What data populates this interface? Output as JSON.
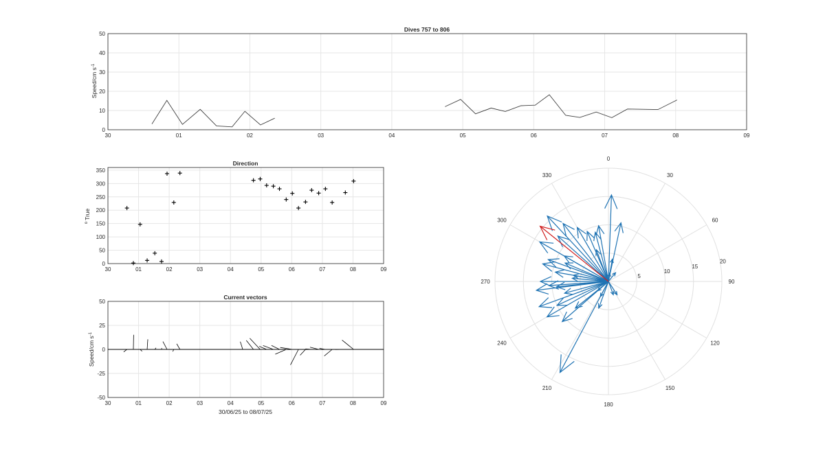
{
  "x_tick_labels": [
    "30",
    "01",
    "02",
    "03",
    "04",
    "05",
    "06",
    "07",
    "08",
    "09"
  ],
  "chart_data": [
    {
      "type": "line",
      "title": "Dives 757 to 806",
      "ylabel": "Speed/cm s",
      "ylabel_sup": "-1",
      "ylim": [
        0,
        50
      ],
      "yticks": [
        0,
        10,
        20,
        30,
        40,
        50
      ],
      "xlim": [
        0,
        9
      ],
      "color": "#404040",
      "segments": [
        [
          [
            0.62,
            3
          ],
          [
            0.83,
            15.3
          ],
          [
            1.05,
            2.8
          ],
          [
            1.3,
            10.6
          ],
          [
            1.53,
            2
          ],
          [
            1.75,
            1.5
          ],
          [
            1.93,
            9.6
          ],
          [
            2.15,
            2.5
          ],
          [
            2.35,
            6
          ]
        ],
        [
          [
            4.75,
            12
          ],
          [
            4.97,
            15.8
          ],
          [
            5.18,
            8.3
          ],
          [
            5.4,
            11.3
          ],
          [
            5.6,
            9.5
          ],
          [
            5.82,
            12.5
          ],
          [
            6.02,
            12.8
          ],
          [
            6.22,
            18.2
          ],
          [
            6.45,
            7.5
          ],
          [
            6.65,
            6.4
          ],
          [
            6.88,
            9.2
          ],
          [
            7.1,
            6.3
          ],
          [
            7.32,
            10.8
          ],
          [
            7.75,
            10.5
          ],
          [
            8.02,
            15.5
          ]
        ]
      ]
    },
    {
      "type": "scatter",
      "title": "Direction",
      "ylabel": "True",
      "ylabel_prefix": "o",
      "ylim": [
        0,
        360
      ],
      "yticks": [
        0,
        50,
        100,
        150,
        200,
        250,
        300,
        350
      ],
      "xlim": [
        0,
        9
      ],
      "marker": "+",
      "points": [
        [
          0.62,
          208
        ],
        [
          0.83,
          2
        ],
        [
          1.05,
          147
        ],
        [
          1.28,
          12
        ],
        [
          1.53,
          39
        ],
        [
          1.75,
          8
        ],
        [
          1.93,
          337
        ],
        [
          2.15,
          229
        ],
        [
          2.35,
          339
        ],
        [
          4.75,
          312
        ],
        [
          4.97,
          317
        ],
        [
          5.18,
          293
        ],
        [
          5.4,
          290
        ],
        [
          5.6,
          280
        ],
        [
          5.82,
          240
        ],
        [
          6.02,
          263
        ],
        [
          6.22,
          208
        ],
        [
          6.45,
          231
        ],
        [
          6.65,
          275
        ],
        [
          6.88,
          264
        ],
        [
          7.1,
          280
        ],
        [
          7.32,
          229
        ],
        [
          7.75,
          266
        ],
        [
          8.02,
          309
        ]
      ]
    },
    {
      "type": "line",
      "title": "Current vectors",
      "subtype": "stick",
      "ylabel": "Speed/cm s",
      "ylabel_sup": "-1",
      "xlabel": "30/06/25 to 08/07/25",
      "ylim": [
        -50,
        50
      ],
      "yticks": [
        -50,
        -25,
        0,
        25,
        50
      ],
      "xlim": [
        0,
        9
      ],
      "color": "#000000",
      "sticks": [
        [
          0.62,
          -3.4,
          -2.6
        ],
        [
          0.83,
          0.3,
          15.2
        ],
        [
          1.05,
          2.1,
          -1.9
        ],
        [
          1.28,
          0.7,
          10.5
        ],
        [
          1.53,
          1.3,
          1.6
        ],
        [
          1.75,
          0.2,
          1.5
        ],
        [
          1.93,
          -4.3,
          8.2
        ],
        [
          2.15,
          -1.1,
          -2.2
        ],
        [
          2.35,
          -3.3,
          5.8
        ],
        [
          4.4,
          -2.5,
          8
        ],
        [
          4.75,
          -7.4,
          9.4
        ],
        [
          4.97,
          -10.8,
          11.6
        ],
        [
          5.18,
          -7.6,
          3.2
        ],
        [
          5.4,
          -10.7,
          4
        ],
        [
          5.6,
          -8.3,
          4.1
        ],
        [
          5.82,
          -11.4,
          -5.0
        ],
        [
          6.02,
          -12.6,
          2.0
        ],
        [
          6.22,
          -8.3,
          -16.1
        ],
        [
          6.45,
          -5.6,
          -6.1
        ],
        [
          6.65,
          -6.4,
          0.5
        ],
        [
          6.88,
          -9.0,
          2.3
        ],
        [
          7.1,
          -6.2,
          1.1
        ],
        [
          7.32,
          -8.2,
          -6.8
        ],
        [
          7.75,
          -10.5,
          -0.2
        ],
        [
          8.02,
          -12.0,
          9.7
        ]
      ]
    },
    {
      "type": "line",
      "subtype": "polar-compass",
      "theta_labels": [
        "0",
        "30",
        "60",
        "90",
        "120",
        "150",
        "180",
        "210",
        "240",
        "270",
        "300",
        "330"
      ],
      "rticks": [
        5,
        10,
        15,
        20
      ],
      "rmax": 20,
      "color_main": "#1f73b3",
      "color_highlight": "#d11f1f",
      "vectors_deg_speed": [
        [
          208,
          3
        ],
        [
          2,
          15.3
        ],
        [
          147,
          2.8
        ],
        [
          12,
          10.6
        ],
        [
          39,
          2
        ],
        [
          8,
          1.5
        ],
        [
          337,
          9.6
        ],
        [
          229,
          2.5
        ],
        [
          339,
          6
        ],
        [
          312,
          12
        ],
        [
          317,
          15.8
        ],
        [
          293,
          8.3
        ],
        [
          290,
          11.3
        ],
        [
          280,
          9.5
        ],
        [
          240,
          12.5
        ],
        [
          263,
          12.8
        ],
        [
          208,
          18.2
        ],
        [
          231,
          7.5
        ],
        [
          275,
          6.4
        ],
        [
          264,
          9.2
        ],
        [
          280,
          6.3
        ],
        [
          229,
          10.8
        ],
        [
          266,
          10.5
        ],
        [
          330,
          11
        ],
        [
          300,
          14
        ],
        [
          250,
          13
        ],
        [
          285,
          12
        ],
        [
          255,
          8
        ],
        [
          345,
          9
        ],
        [
          10,
          4
        ],
        [
          200,
          5
        ],
        [
          160,
          2.5
        ],
        [
          350,
          10
        ],
        [
          322,
          13
        ],
        [
          270,
          12
        ],
        [
          245,
          10
        ],
        [
          300,
          9
        ]
      ],
      "highlight_vector": [
        309,
        15.5
      ]
    }
  ]
}
